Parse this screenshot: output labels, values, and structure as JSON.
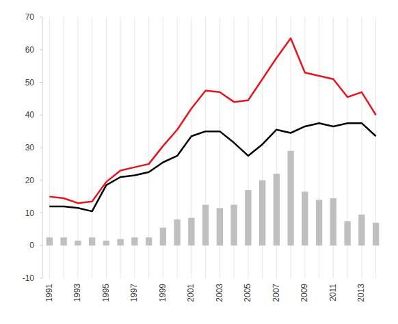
{
  "chart_data": {
    "type": "bar",
    "categories": [
      "1991",
      null,
      "1993",
      null,
      "1995",
      null,
      "1997",
      null,
      "1999",
      null,
      "2001",
      null,
      "2003",
      null,
      "2005",
      null,
      "2007",
      null,
      "2009",
      null,
      "2011",
      null,
      "2013",
      null
    ],
    "series": [
      {
        "type": "bar",
        "color": "#bfbfbf",
        "values": [
          2.5,
          2.5,
          1.5,
          2.5,
          1.5,
          2,
          2.5,
          2.5,
          5.5,
          8,
          8.5,
          12.5,
          11.5,
          12.5,
          17,
          20,
          22,
          29,
          16.5,
          14,
          14.5,
          7.5,
          9.5,
          7
        ]
      },
      {
        "type": "line",
        "color": "#e8141c",
        "values": [
          15,
          14.5,
          13,
          13.5,
          19.5,
          23,
          24,
          25,
          30.5,
          35.5,
          42,
          47.5,
          47,
          44,
          44.5,
          51,
          57.5,
          63.5,
          53,
          52,
          51,
          45.5,
          47,
          40
        ]
      },
      {
        "type": "line",
        "color": "#000000",
        "values": [
          12,
          12,
          11.5,
          10.5,
          18.5,
          21,
          21.5,
          22.5,
          25.5,
          27.5,
          33.5,
          35,
          35,
          31.5,
          27.5,
          31,
          35.5,
          34.5,
          36.5,
          37.5,
          36.5,
          37.5,
          37.5,
          33.5
        ]
      }
    ],
    "ylim": [
      -10,
      70
    ],
    "yticks": [
      -10,
      0,
      10,
      20,
      30,
      40,
      50,
      60,
      70
    ],
    "grid": true
  }
}
